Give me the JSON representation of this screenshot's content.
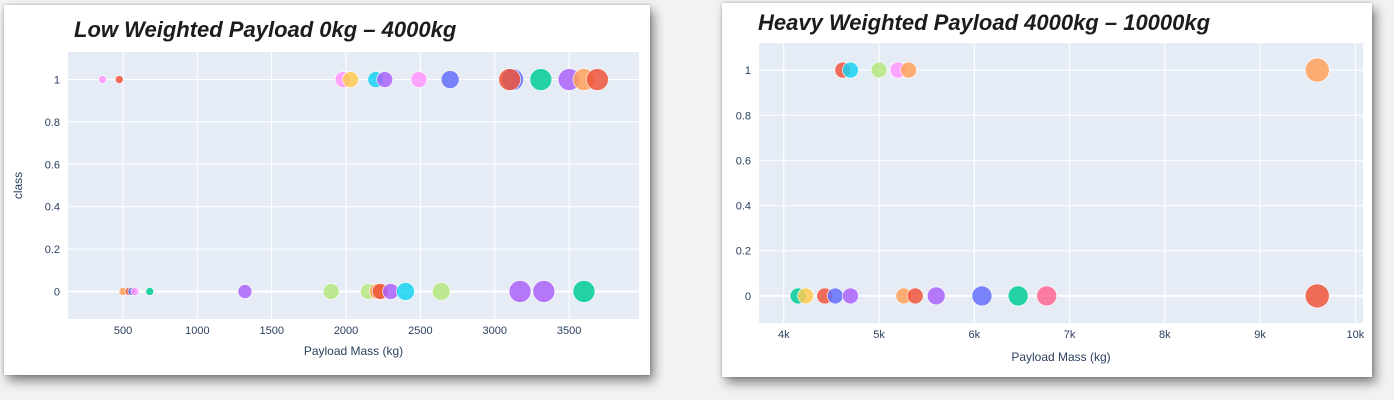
{
  "chart_data": [
    {
      "type": "scatter",
      "title": "Low Weighted Payload 0kg – 4000kg",
      "xlabel": "Payload Mass (kg)",
      "ylabel": "class",
      "xlim": [
        130,
        3970
      ],
      "ylim": [
        -0.13,
        1.13
      ],
      "x_ticks": [
        500,
        1000,
        1500,
        2000,
        2500,
        3000,
        3500
      ],
      "x_tick_labels": [
        "500",
        "1000",
        "1500",
        "2000",
        "2500",
        "3000",
        "3500"
      ],
      "y_ticks": [
        0,
        0.2,
        0.4,
        0.6,
        0.8,
        1
      ],
      "y_tick_labels": [
        "0",
        "0.2",
        "0.4",
        "0.6",
        "0.8",
        "1"
      ],
      "grid": true,
      "plot_bgcolor": "#e5ecf6",
      "points": [
        {
          "x": 362,
          "y": 1,
          "size": 4,
          "color": "#ff97ff"
        },
        {
          "x": 475,
          "y": 1,
          "size": 4,
          "color": "#ef553b"
        },
        {
          "x": 1980,
          "y": 1,
          "size": 8,
          "color": "#ff97ff"
        },
        {
          "x": 2030,
          "y": 1,
          "size": 8,
          "color": "#fecb52"
        },
        {
          "x": 2200,
          "y": 1,
          "size": 8,
          "color": "#19d3f3"
        },
        {
          "x": 2260,
          "y": 1,
          "size": 8,
          "color": "#ab63fa"
        },
        {
          "x": 2490,
          "y": 1,
          "size": 8,
          "color": "#ff97ff"
        },
        {
          "x": 2700,
          "y": 1,
          "size": 9,
          "color": "#636efa"
        },
        {
          "x": 3120,
          "y": 1,
          "size": 11,
          "color": "#636efa"
        },
        {
          "x": 3100,
          "y": 1,
          "size": 11,
          "color": "#ef553b"
        },
        {
          "x": 3310,
          "y": 1,
          "size": 11,
          "color": "#00cc96"
        },
        {
          "x": 3500,
          "y": 1,
          "size": 11,
          "color": "#ab63fa"
        },
        {
          "x": 3600,
          "y": 1,
          "size": 11,
          "color": "#ffa15a"
        },
        {
          "x": 3690,
          "y": 1,
          "size": 11,
          "color": "#ef553b"
        },
        {
          "x": 500,
          "y": 0,
          "size": 4,
          "color": "#ffa15a"
        },
        {
          "x": 540,
          "y": 0,
          "size": 4,
          "color": "#ef553b"
        },
        {
          "x": 560,
          "y": 0,
          "size": 4,
          "color": "#636efa"
        },
        {
          "x": 580,
          "y": 0,
          "size": 4,
          "color": "#ff97ff"
        },
        {
          "x": 680,
          "y": 0,
          "size": 4,
          "color": "#00cc96"
        },
        {
          "x": 1320,
          "y": 0,
          "size": 7,
          "color": "#ab63fa"
        },
        {
          "x": 1900,
          "y": 0,
          "size": 8,
          "color": "#b6e880"
        },
        {
          "x": 2150,
          "y": 0,
          "size": 8,
          "color": "#b6e880"
        },
        {
          "x": 2210,
          "y": 0,
          "size": 8,
          "color": "#ffa15a"
        },
        {
          "x": 2230,
          "y": 0,
          "size": 8,
          "color": "#ef553b"
        },
        {
          "x": 2300,
          "y": 0,
          "size": 8,
          "color": "#ab63fa"
        },
        {
          "x": 2400,
          "y": 0,
          "size": 9,
          "color": "#19d3f3"
        },
        {
          "x": 2640,
          "y": 0,
          "size": 9,
          "color": "#b6e880"
        },
        {
          "x": 3170,
          "y": 0,
          "size": 11,
          "color": "#ab63fa"
        },
        {
          "x": 3330,
          "y": 0,
          "size": 11,
          "color": "#ab63fa"
        },
        {
          "x": 3600,
          "y": 0,
          "size": 11,
          "color": "#00cc96"
        }
      ]
    },
    {
      "type": "scatter",
      "title": "Heavy Weighted Payload 4000kg – 10000kg",
      "xlabel": "Payload Mass (kg)",
      "ylabel": "",
      "xlim": [
        3740,
        10080
      ],
      "ylim": [
        -0.12,
        1.12
      ],
      "x_ticks": [
        4000,
        5000,
        6000,
        7000,
        8000,
        9000,
        10000
      ],
      "x_tick_labels": [
        "4k",
        "5k",
        "6k",
        "7k",
        "8k",
        "9k",
        "10k"
      ],
      "y_ticks": [
        0,
        0.2,
        0.4,
        0.6,
        0.8,
        1
      ],
      "y_tick_labels": [
        "0",
        "0.2",
        "0.4",
        "0.6",
        "0.8",
        "1"
      ],
      "grid": true,
      "plot_bgcolor": "#e5ecf6",
      "points": [
        {
          "x": 4620,
          "y": 1,
          "size": 8,
          "color": "#ef553b"
        },
        {
          "x": 4700,
          "y": 1,
          "size": 8,
          "color": "#19d3f3"
        },
        {
          "x": 5000,
          "y": 1,
          "size": 8,
          "color": "#b6e880"
        },
        {
          "x": 5200,
          "y": 1,
          "size": 8,
          "color": "#ff97ff"
        },
        {
          "x": 5310,
          "y": 1,
          "size": 8,
          "color": "#ffa15a"
        },
        {
          "x": 9600,
          "y": 1,
          "size": 12,
          "color": "#ffa15a"
        },
        {
          "x": 4150,
          "y": 0,
          "size": 8,
          "color": "#00cc96"
        },
        {
          "x": 4230,
          "y": 0,
          "size": 8,
          "color": "#fecb52"
        },
        {
          "x": 4430,
          "y": 0,
          "size": 8,
          "color": "#ef553b"
        },
        {
          "x": 4540,
          "y": 0,
          "size": 8,
          "color": "#636efa"
        },
        {
          "x": 4700,
          "y": 0,
          "size": 8,
          "color": "#ab63fa"
        },
        {
          "x": 5260,
          "y": 0,
          "size": 8,
          "color": "#ffa15a"
        },
        {
          "x": 5380,
          "y": 0,
          "size": 8,
          "color": "#ef553b"
        },
        {
          "x": 5600,
          "y": 0,
          "size": 9,
          "color": "#ab63fa"
        },
        {
          "x": 6080,
          "y": 0,
          "size": 10,
          "color": "#636efa"
        },
        {
          "x": 6460,
          "y": 0,
          "size": 10,
          "color": "#00cc96"
        },
        {
          "x": 6760,
          "y": 0,
          "size": 10,
          "color": "#ff6692"
        },
        {
          "x": 9600,
          "y": 0,
          "size": 12,
          "color": "#ef553b"
        }
      ]
    }
  ]
}
